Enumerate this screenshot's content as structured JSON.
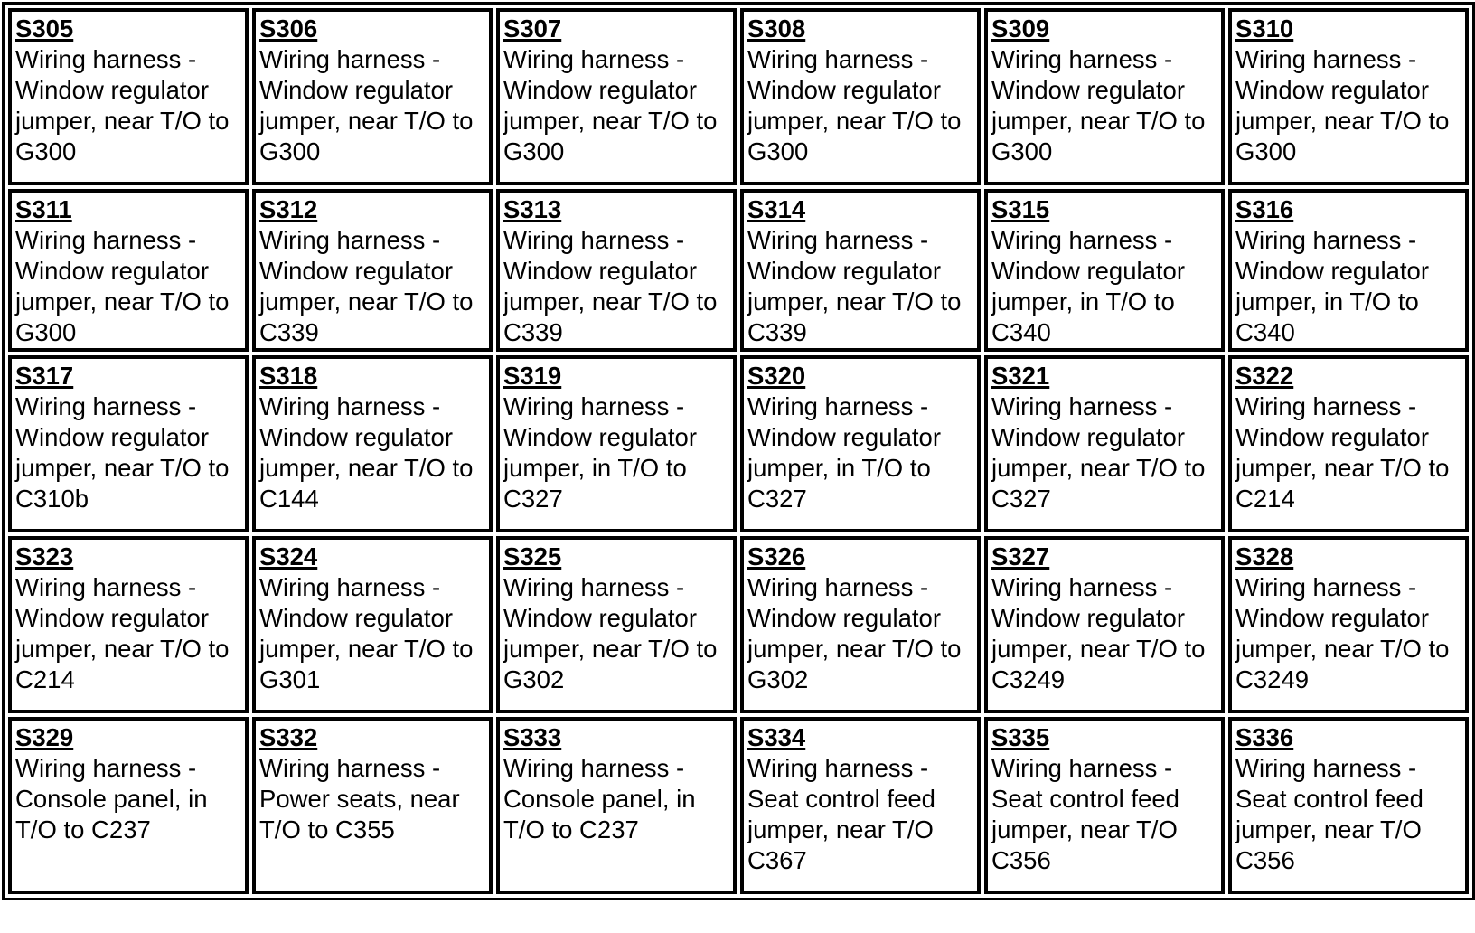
{
  "rows": [
    [
      {
        "code": "S305",
        "desc": "Wiring harness - Window regulator jumper, near T/O to G300"
      },
      {
        "code": "S306",
        "desc": "Wiring harness - Window regulator jumper, near T/O to G300"
      },
      {
        "code": "S307",
        "desc": "Wiring harness - Window regulator jumper, near T/O to G300"
      },
      {
        "code": "S308",
        "desc": "Wiring harness - Window regulator jumper, near T/O to G300"
      },
      {
        "code": "S309",
        "desc": "Wiring harness - Window regulator jumper, near T/O to G300"
      },
      {
        "code": "S310",
        "desc": "Wiring harness - Window regulator jumper, near T/O to G300"
      }
    ],
    [
      {
        "code": "S311",
        "desc": "Wiring harness - Window regulator jumper, near T/O to G300"
      },
      {
        "code": "S312",
        "desc": "Wiring harness - Window regulator jumper, near T/O to C339"
      },
      {
        "code": "S313",
        "desc": "Wiring harness - Window regulator jumper, near T/O to C339"
      },
      {
        "code": "S314",
        "desc": "Wiring harness - Window regulator jumper, near T/O to C339"
      },
      {
        "code": "S315",
        "desc": "Wiring harness - Window regulator jumper, in T/O to C340"
      },
      {
        "code": "S316",
        "desc": "Wiring harness - Window regulator jumper, in T/O to C340"
      }
    ],
    [
      {
        "code": "S317",
        "desc": "Wiring harness - Window regulator jumper, near T/O to C310b"
      },
      {
        "code": "S318",
        "desc": "Wiring harness - Window regulator jumper, near T/O to C144"
      },
      {
        "code": "S319",
        "desc": "Wiring harness - Window regulator jumper, in T/O to C327"
      },
      {
        "code": "S320",
        "desc": "Wiring harness - Window regulator jumper, in T/O to C327"
      },
      {
        "code": "S321",
        "desc": "Wiring harness - Window regulator jumper, near T/O to C327"
      },
      {
        "code": "S322",
        "desc": "Wiring harness - Window regulator jumper, near T/O to C214"
      }
    ],
    [
      {
        "code": "S323",
        "desc": "Wiring harness - Window regulator jumper, near T/O to C214"
      },
      {
        "code": "S324",
        "desc": "Wiring harness - Window regulator jumper, near T/O to G301"
      },
      {
        "code": "S325",
        "desc": "Wiring harness - Window regulator jumper, near T/O to G302"
      },
      {
        "code": "S326",
        "desc": "Wiring harness - Window regulator jumper, near T/O to G302"
      },
      {
        "code": "S327",
        "desc": "Wiring harness - Window regulator jumper, near T/O to C3249"
      },
      {
        "code": "S328",
        "desc": "Wiring harness - Window regulator jumper, near T/O to C3249"
      }
    ],
    [
      {
        "code": "S329",
        "desc": "Wiring harness - Console panel, in T/O to C237"
      },
      {
        "code": "S332",
        "desc": "Wiring harness - Power seats, near T/O to C355"
      },
      {
        "code": "S333",
        "desc": "Wiring harness - Console panel, in T/O to C237"
      },
      {
        "code": "S334",
        "desc": "Wiring harness - Seat control feed jumper, near T/O C367"
      },
      {
        "code": "S335",
        "desc": "Wiring harness - Seat control feed jumper, near T/O C356"
      },
      {
        "code": "S336",
        "desc": "Wiring harness - Seat control feed jumper, near T/O C356"
      }
    ]
  ]
}
